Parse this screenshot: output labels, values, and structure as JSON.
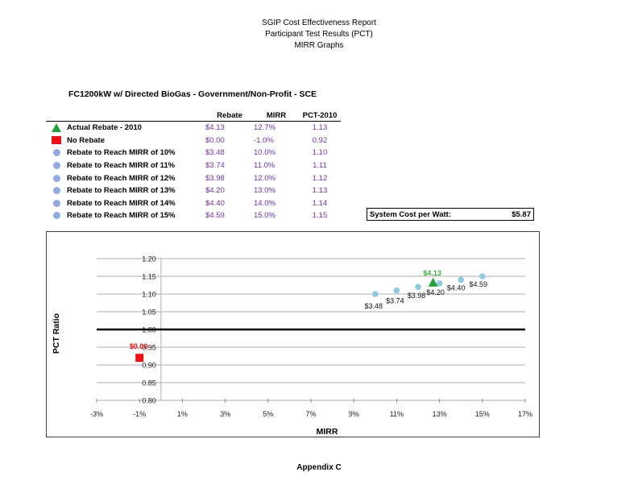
{
  "header": {
    "line1": "SGIP Cost Effectiveness Report",
    "line2": "Participant Test Results (PCT)",
    "line3": "MIRR Graphs"
  },
  "subtitle": "FC1200kW w/ Directed BioGas - Government/Non-Profit - SCE",
  "legend_table": {
    "columns": [
      "Rebate",
      "MIRR",
      "PCT-2010"
    ],
    "rows": [
      {
        "marker": "green-triangle",
        "label": "Actual Rebate - 2010",
        "rebate": "$4.13",
        "mirr": "12.7%",
        "pct": "1.13"
      },
      {
        "marker": "red-square",
        "label": "No Rebate",
        "rebate": "$0.00",
        "mirr": "-1.0%",
        "pct": "0.92"
      },
      {
        "marker": "blue-circle",
        "label": "Rebate to Reach MIRR of 10%",
        "rebate": "$3.48",
        "mirr": "10.0%",
        "pct": "1.10"
      },
      {
        "marker": "blue-circle",
        "label": "Rebate to Reach MIRR of 11%",
        "rebate": "$3.74",
        "mirr": "11.0%",
        "pct": "1.11"
      },
      {
        "marker": "blue-circle",
        "label": "Rebate to Reach MIRR of 12%",
        "rebate": "$3.98",
        "mirr": "12.0%",
        "pct": "1.12"
      },
      {
        "marker": "blue-circle",
        "label": "Rebate to Reach MIRR of 13%",
        "rebate": "$4.20",
        "mirr": "13.0%",
        "pct": "1.13"
      },
      {
        "marker": "blue-circle",
        "label": "Rebate to Reach MIRR of 14%",
        "rebate": "$4.40",
        "mirr": "14.0%",
        "pct": "1.14"
      },
      {
        "marker": "blue-circle",
        "label": "Rebate to Reach MIRR of 15%",
        "rebate": "$4.59",
        "mirr": "15.0%",
        "pct": "1.15"
      }
    ]
  },
  "system_cost": {
    "label": "System Cost per Watt:",
    "value": "$5.87"
  },
  "colors": {
    "value_text": "#7030a0",
    "actual_marker": "#22a03c",
    "no_rebate_marker": "#ee1111",
    "mirr_points": "#8ecae0",
    "legend_circle": "#8faadc"
  },
  "chart_data": {
    "type": "scatter",
    "title": "",
    "xlabel": "MIRR",
    "ylabel": "PCT Ratio",
    "xlim": [
      -3,
      17
    ],
    "ylim": [
      0.8,
      1.2
    ],
    "x_ticks": [
      "-3%",
      "-1%",
      "1%",
      "3%",
      "5%",
      "7%",
      "9%",
      "11%",
      "13%",
      "15%",
      "17%"
    ],
    "y_ticks": [
      "0.80",
      "0.85",
      "0.90",
      "0.95",
      "1.00",
      "1.05",
      "1.10",
      "1.15",
      "1.20"
    ],
    "grid": "horizontal",
    "reference_line": {
      "y": 1.0,
      "style": "bold black"
    },
    "series": [
      {
        "name": "Actual Rebate - 2010",
        "marker": "triangle",
        "color": "#22a03c",
        "points": [
          {
            "x": 12.7,
            "y": 1.13,
            "label": "$4.13"
          }
        ]
      },
      {
        "name": "No Rebate",
        "marker": "square",
        "color": "#ee1111",
        "points": [
          {
            "x": -1.0,
            "y": 0.92,
            "label": "$0.00"
          }
        ]
      },
      {
        "name": "Rebate to Reach MIRR",
        "marker": "circle",
        "color": "#8ecae0",
        "points": [
          {
            "x": 10.0,
            "y": 1.1,
            "label": "$3.48"
          },
          {
            "x": 11.0,
            "y": 1.11,
            "label": "$3.74"
          },
          {
            "x": 12.0,
            "y": 1.12,
            "label": "$3.98"
          },
          {
            "x": 13.0,
            "y": 1.13,
            "label": "$4.20"
          },
          {
            "x": 14.0,
            "y": 1.14,
            "label": "$4.40"
          },
          {
            "x": 15.0,
            "y": 1.15,
            "label": "$4.59"
          }
        ]
      }
    ]
  },
  "footer": "Appendix C"
}
